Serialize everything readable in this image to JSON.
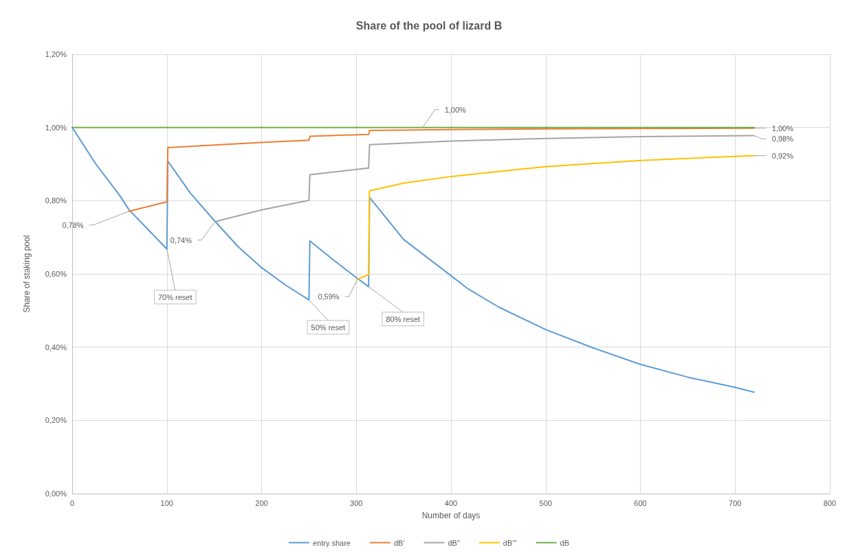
{
  "chart_data": {
    "type": "line",
    "title": "Share of the pool of lizard B",
    "xlabel": "Number of days",
    "ylabel": "Share of staking pool",
    "xlim": [
      0,
      800
    ],
    "xticks": [
      0,
      100,
      200,
      300,
      400,
      500,
      600,
      700,
      800
    ],
    "ylim": [
      0,
      1.2
    ],
    "yticks": [
      {
        "value": 0,
        "label": "0,00%"
      },
      {
        "value": 0.2,
        "label": "0,20%"
      },
      {
        "value": 0.4,
        "label": "0,40%"
      },
      {
        "value": 0.6,
        "label": "0,60%"
      },
      {
        "value": 0.8,
        "label": "0,80%"
      },
      {
        "value": 1.0,
        "label": "1,00%"
      },
      {
        "value": 1.2,
        "label": "1,20%"
      }
    ],
    "grid": true,
    "legend": "bottom",
    "marker": "none",
    "line_style": "solid",
    "series": [
      {
        "name": "entry share",
        "color": "#5b9bd5",
        "x": [
          0,
          25,
          50,
          60,
          75,
          100,
          101,
          125,
          151,
          175,
          200,
          225,
          250,
          251,
          275,
          300,
          313,
          314,
          350,
          400,
          417,
          450,
          500,
          550,
          600,
          650,
          700,
          720
        ],
        "values": [
          1.0,
          0.9,
          0.815,
          0.775,
          0.735,
          0.668,
          0.908,
          0.82,
          0.743,
          0.675,
          0.617,
          0.57,
          0.529,
          0.69,
          0.64,
          0.59,
          0.565,
          0.809,
          0.694,
          0.595,
          0.561,
          0.51,
          0.448,
          0.398,
          0.353,
          0.318,
          0.29,
          0.277
        ]
      },
      {
        "name": "dB'",
        "color": "#ed7d31",
        "x": [
          60,
          100,
          101,
          150,
          200,
          250,
          251,
          313,
          314,
          400,
          500,
          600,
          720
        ],
        "values": [
          0.771,
          0.797,
          0.945,
          0.952,
          0.959,
          0.965,
          0.976,
          0.981,
          0.992,
          0.994,
          0.996,
          0.997,
          0.998
        ]
      },
      {
        "name": "dB\"",
        "color": "#a5a5a5",
        "x": [
          151,
          200,
          250,
          251,
          313,
          314,
          400,
          500,
          600,
          720
        ],
        "values": [
          0.743,
          0.775,
          0.801,
          0.871,
          0.889,
          0.953,
          0.963,
          0.97,
          0.975,
          0.978
        ]
      },
      {
        "name": "dB'''",
        "color": "#ffc000",
        "x": [
          301,
          313,
          314,
          350,
          400,
          500,
          600,
          720
        ],
        "values": [
          0.585,
          0.598,
          0.827,
          0.848,
          0.866,
          0.893,
          0.91,
          0.923
        ]
      },
      {
        "name": "dB",
        "color": "#70ad47",
        "x": [
          0,
          720
        ],
        "values": [
          1.0,
          1.0
        ]
      }
    ],
    "annotations": [
      {
        "text": "0,78%",
        "x": 60,
        "y": 0.771
      },
      {
        "text": "0,74%",
        "x": 151,
        "y": 0.743
      },
      {
        "text": "0,59%",
        "x": 301,
        "y": 0.585
      },
      {
        "text": "1,00%",
        "x": 370,
        "y": 1.0
      },
      {
        "text": "1,00%",
        "x": 720,
        "y": 0.998
      },
      {
        "text": "0,98%",
        "x": 720,
        "y": 0.978
      },
      {
        "text": "0,92%",
        "x": 720,
        "y": 0.923
      },
      {
        "text": "70% reset",
        "x": 100,
        "y": 0.668
      },
      {
        "text": "50% reset",
        "x": 250,
        "y": 0.529
      },
      {
        "text": "80% reset",
        "x": 313,
        "y": 0.565
      }
    ]
  }
}
